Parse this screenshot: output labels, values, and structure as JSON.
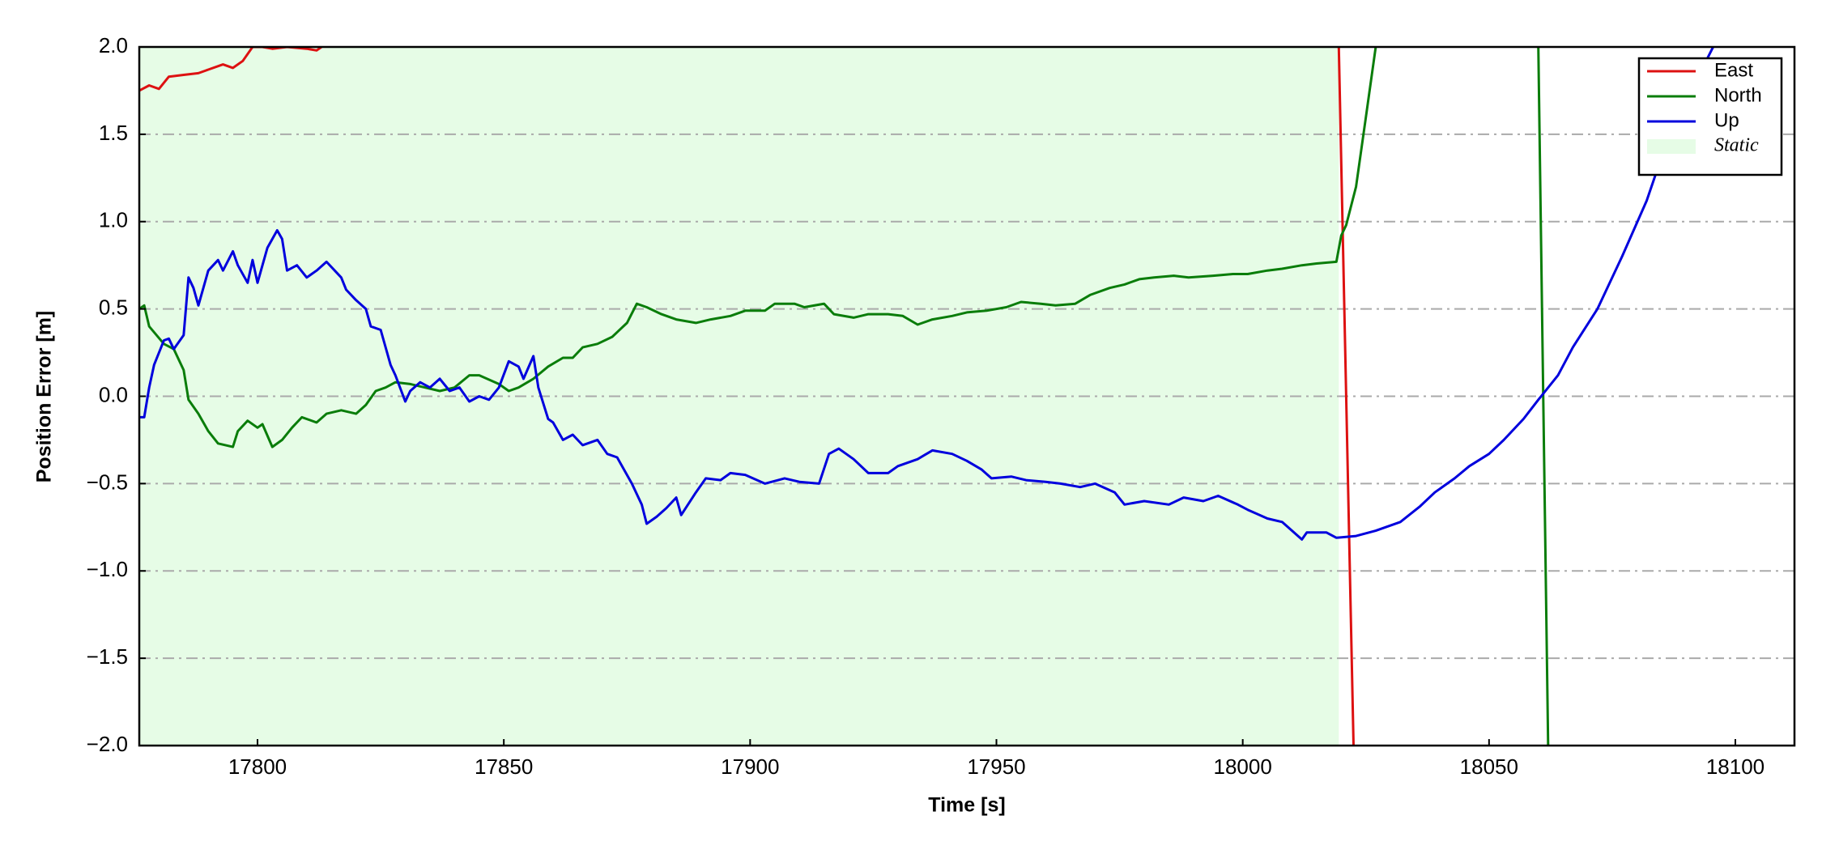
{
  "chart_data": {
    "type": "line",
    "xlabel": "Time [s]",
    "ylabel": "Position Error [m]",
    "xlim": [
      17776,
      18112
    ],
    "xticks": [
      17800,
      17850,
      17900,
      17950,
      18000,
      18050,
      18100
    ],
    "ylim": [
      -2,
      2
    ],
    "yticks": [
      {
        "value": -2,
        "label": "−2.0"
      },
      {
        "value": -1.5,
        "label": "−1.5"
      },
      {
        "value": -1,
        "label": "−1.0"
      },
      {
        "value": -0.5,
        "label": "−0.5"
      },
      {
        "value": 0,
        "label": "0.0"
      },
      0.5,
      {
        "value": 1,
        "label": "1.0"
      },
      1.5,
      {
        "value": 2,
        "label": "2.0"
      }
    ],
    "grid": true,
    "legend": "upper right",
    "static_region": {
      "name": "Static",
      "color": "#e6fce6",
      "x": [
        17776,
        18019.5
      ]
    },
    "series": [
      {
        "name": "East",
        "color": "#dd1111",
        "x": [
          17776,
          17778,
          17780,
          17782,
          17785,
          17788,
          17790,
          17793,
          17795,
          17797,
          17799,
          17801,
          17803,
          17806,
          17810,
          17812,
          17813,
          17900,
          18019.5,
          18022.5
        ],
        "values": [
          1.75,
          1.78,
          1.76,
          1.83,
          1.84,
          1.85,
          1.87,
          1.9,
          1.88,
          1.92,
          2.0,
          2.0,
          1.99,
          2.0,
          1.99,
          1.98,
          2.0,
          null,
          2.0,
          -2.0
        ]
      },
      {
        "name": "North",
        "color": "#0a7d0a",
        "x": [
          17776,
          17777,
          17778,
          17781,
          17783,
          17785,
          17786,
          17788,
          17790,
          17792,
          17795,
          17796,
          17798,
          17800,
          17801,
          17803,
          17805,
          17807,
          17809,
          17812,
          17814,
          17817,
          17820,
          17822,
          17824,
          17826,
          17828,
          17831,
          17834,
          17837,
          17840,
          17843,
          17845,
          17849,
          17851,
          17853,
          17856,
          17859,
          17862,
          17864,
          17866,
          17869,
          17872,
          17875,
          17877,
          17879,
          17882,
          17885,
          17889,
          17892,
          17896,
          17899,
          17903,
          17905,
          17909,
          17911,
          17915,
          17917,
          17921,
          17924,
          17928,
          17931,
          17934,
          17937,
          17941,
          17944,
          17948,
          17952,
          17955,
          17959,
          17962,
          17966,
          17969,
          17973,
          17976,
          17979,
          17982,
          17986,
          17989,
          17994,
          17998,
          18001,
          18005,
          18008,
          18012,
          18015,
          18019,
          18020,
          18021,
          18023,
          18025,
          18027,
          18040,
          18060,
          18062
        ],
        "values": [
          0.5,
          0.52,
          0.4,
          0.3,
          0.27,
          0.15,
          -0.02,
          -0.1,
          -0.2,
          -0.27,
          -0.29,
          -0.2,
          -0.14,
          -0.18,
          -0.16,
          -0.29,
          -0.25,
          -0.18,
          -0.12,
          -0.15,
          -0.1,
          -0.08,
          -0.1,
          -0.05,
          0.03,
          0.05,
          0.08,
          0.07,
          0.05,
          0.03,
          0.05,
          0.12,
          0.12,
          0.07,
          0.03,
          0.05,
          0.1,
          0.17,
          0.22,
          0.22,
          0.28,
          0.3,
          0.34,
          0.42,
          0.53,
          0.51,
          0.47,
          0.44,
          0.42,
          0.44,
          0.46,
          0.49,
          0.49,
          0.53,
          0.53,
          0.51,
          0.53,
          0.47,
          0.45,
          0.47,
          0.47,
          0.46,
          0.41,
          0.44,
          0.46,
          0.48,
          0.49,
          0.51,
          0.54,
          0.53,
          0.52,
          0.53,
          0.58,
          0.62,
          0.64,
          0.67,
          0.68,
          0.69,
          0.68,
          0.69,
          0.7,
          0.7,
          0.72,
          0.73,
          0.75,
          0.76,
          0.77,
          0.92,
          0.98,
          1.2,
          1.6,
          2.0,
          null,
          2.0,
          -2.0
        ]
      },
      {
        "name": "Up",
        "color": "#0000dd",
        "x": [
          17776,
          17777,
          17778,
          17779,
          17781,
          17782,
          17783,
          17785,
          17786,
          17787,
          17788,
          17790,
          17792,
          17793,
          17795,
          17796,
          17798,
          17799,
          17800,
          17802,
          17804,
          17805,
          17806,
          17808,
          17810,
          17812,
          17814,
          17817,
          17818,
          17820,
          17822,
          17823,
          17825,
          17827,
          17828,
          17830,
          17831,
          17833,
          17835,
          17837,
          17839,
          17841,
          17843,
          17845,
          17847,
          17849,
          17851,
          17853,
          17854,
          17856,
          17857,
          17859,
          17860,
          17862,
          17864,
          17866,
          17869,
          17871,
          17873,
          17876,
          17878,
          17879,
          17881,
          17883,
          17885,
          17886,
          17889,
          17891,
          17894,
          17896,
          17899,
          17903,
          17907,
          17910,
          17914,
          17916,
          17918,
          17921,
          17924,
          17928,
          17930,
          17934,
          17937,
          17941,
          17944,
          17947,
          17949,
          17953,
          17956,
          17960,
          17963,
          17967,
          17970,
          17974,
          17976,
          17980,
          17985,
          17988,
          17992,
          17995,
          17999,
          18001,
          18005,
          18008,
          18012,
          18013,
          18017,
          18019,
          18023,
          18027,
          18032,
          18036,
          18039,
          18043,
          18046,
          18050,
          18053,
          18057,
          18060,
          18064,
          18067,
          18072,
          18077,
          18082,
          18086,
          18091,
          18095.5
        ],
        "values": [
          -0.12,
          -0.12,
          0.05,
          0.18,
          0.32,
          0.33,
          0.27,
          0.35,
          0.68,
          0.62,
          0.52,
          0.72,
          0.78,
          0.72,
          0.83,
          0.75,
          0.65,
          0.78,
          0.65,
          0.85,
          0.95,
          0.9,
          0.72,
          0.75,
          0.68,
          0.72,
          0.77,
          0.68,
          0.61,
          0.55,
          0.5,
          0.4,
          0.38,
          0.18,
          0.12,
          -0.03,
          0.03,
          0.08,
          0.05,
          0.1,
          0.03,
          0.05,
          -0.03,
          0.0,
          -0.02,
          0.05,
          0.2,
          0.17,
          0.1,
          0.23,
          0.05,
          -0.13,
          -0.15,
          -0.25,
          -0.22,
          -0.28,
          -0.25,
          -0.33,
          -0.35,
          -0.5,
          -0.62,
          -0.73,
          -0.69,
          -0.64,
          -0.58,
          -0.68,
          -0.55,
          -0.47,
          -0.48,
          -0.44,
          -0.45,
          -0.5,
          -0.47,
          -0.49,
          -0.5,
          -0.33,
          -0.3,
          -0.36,
          -0.44,
          -0.44,
          -0.4,
          -0.36,
          -0.31,
          -0.33,
          -0.37,
          -0.42,
          -0.47,
          -0.46,
          -0.48,
          -0.49,
          -0.5,
          -0.52,
          -0.5,
          -0.55,
          -0.62,
          -0.6,
          -0.62,
          -0.58,
          -0.6,
          -0.57,
          -0.62,
          -0.65,
          -0.7,
          -0.72,
          -0.82,
          -0.78,
          -0.78,
          -0.81,
          -0.8,
          -0.77,
          -0.72,
          -0.63,
          -0.55,
          -0.47,
          -0.4,
          -0.33,
          -0.25,
          -0.13,
          -0.02,
          0.12,
          0.28,
          0.5,
          0.8,
          1.12,
          1.45,
          1.75,
          2.0
        ]
      }
    ]
  }
}
